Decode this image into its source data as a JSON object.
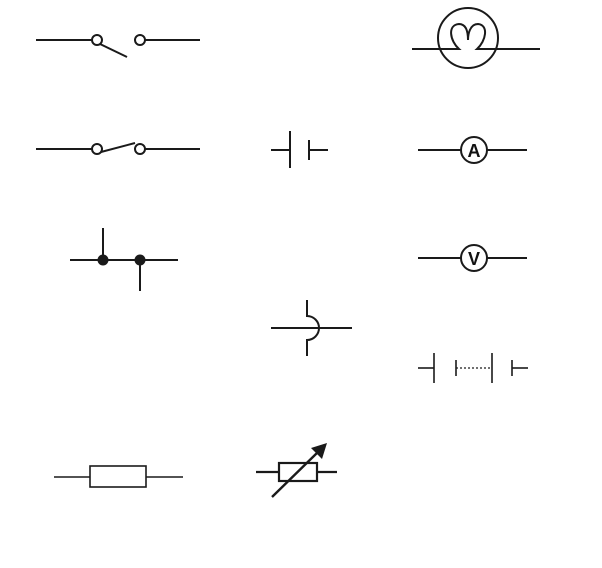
{
  "diagram": {
    "ammeter_letter": "A",
    "voltmeter_letter": "V",
    "stroke_color": "#1a1a1a",
    "background": "#ffffff",
    "symbols": [
      {
        "name": "open-switch",
        "icon": "open-switch-icon"
      },
      {
        "name": "closed-switch",
        "icon": "closed-switch-icon"
      },
      {
        "name": "junction",
        "icon": "junction-icon"
      },
      {
        "name": "resistor",
        "icon": "resistor-icon"
      },
      {
        "name": "cell",
        "icon": "cell-icon"
      },
      {
        "name": "crossing-wires",
        "icon": "crossover-icon"
      },
      {
        "name": "variable-resistor",
        "icon": "variable-resistor-icon"
      },
      {
        "name": "lamp",
        "icon": "lamp-icon"
      },
      {
        "name": "ammeter",
        "icon": "ammeter-icon"
      },
      {
        "name": "voltmeter",
        "icon": "voltmeter-icon"
      },
      {
        "name": "battery",
        "icon": "battery-icon"
      }
    ]
  }
}
